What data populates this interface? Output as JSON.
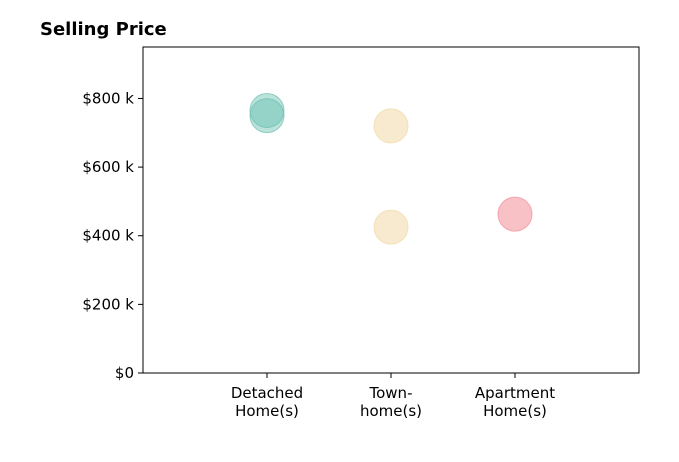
{
  "chart_data": {
    "type": "scatter",
    "title": "Selling Price",
    "xlabel": "",
    "ylabel": "",
    "categories": [
      [
        "Detached",
        "Home(s)"
      ],
      [
        "Town-",
        "home(s)"
      ],
      [
        "Apartment",
        "Home(s)"
      ]
    ],
    "y_tick_values": [
      0,
      200,
      400,
      600,
      800
    ],
    "y_tick_labels": [
      "$0",
      "$200 k",
      "$400 k",
      "$600 k",
      "$800 k"
    ],
    "ylim": [
      0,
      950
    ],
    "xlim": [
      -1,
      3
    ],
    "grid": false,
    "legend": "none",
    "series": [
      {
        "category": 0,
        "color": "#69BFB0",
        "opacity": 0.45,
        "points": [
          765,
          750
        ]
      },
      {
        "category": 1,
        "color": "#F3DFB3",
        "opacity": 0.65,
        "points": [
          720,
          425
        ]
      },
      {
        "category": 2,
        "color": "#F2A0A8",
        "opacity": 0.65,
        "points": [
          463
        ]
      }
    ]
  }
}
